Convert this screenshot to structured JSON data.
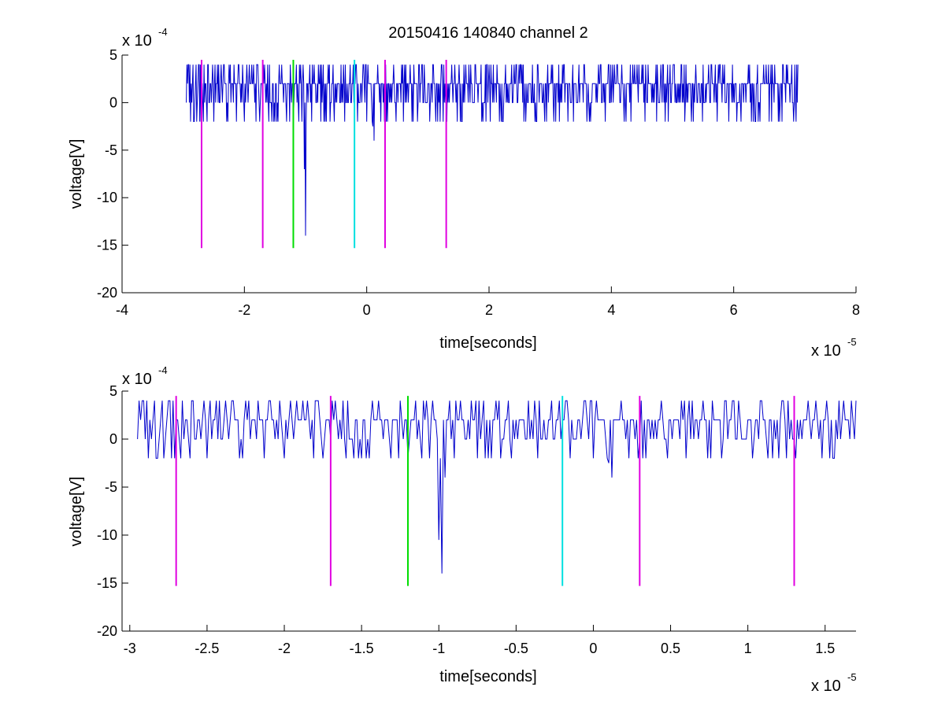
{
  "title": "20150416 140840 channel 2",
  "colors": {
    "signal": "#0000cc",
    "magenta": "#e000e0",
    "green": "#00dd00",
    "cyan": "#00e0e0",
    "axis": "#000000"
  },
  "chart_data": [
    {
      "type": "line",
      "title": "20150416 140840 channel 2",
      "xlabel": "time[seconds]",
      "ylabel": "voltage[V]",
      "x_scale_label": "x 10",
      "x_scale_power": "-5",
      "y_scale_label": "x 10",
      "y_scale_power": "-4",
      "xlim": [
        -4,
        8
      ],
      "ylim": [
        -20,
        5
      ],
      "x_ticks": [
        -4,
        -2,
        0,
        2,
        4,
        6,
        8
      ],
      "x_tick_labels": [
        "-4",
        "-2",
        "0",
        "2",
        "4",
        "6",
        "8"
      ],
      "y_ticks": [
        -20,
        -15,
        -10,
        -5,
        0,
        5
      ],
      "y_tick_labels": [
        "-20",
        "-15",
        "-10",
        "-5",
        "0",
        "5"
      ],
      "grid": false,
      "signal": {
        "x_start": -2.95,
        "x_end": 7.05,
        "levels": [
          -2,
          0,
          2,
          4
        ],
        "spikes": [
          {
            "x": -1.0,
            "y": -14
          },
          {
            "x": -1.02,
            "y": -7
          },
          {
            "x": 0.12,
            "y": -4
          },
          {
            "x": 0.1,
            "y": -2.5
          }
        ]
      },
      "markers": [
        {
          "x": -2.7,
          "y_top": 4.5,
          "y_bottom": -15.3,
          "color": "magenta"
        },
        {
          "x": -1.7,
          "y_top": 4.5,
          "y_bottom": -15.3,
          "color": "magenta"
        },
        {
          "x": -1.2,
          "y_top": 4.5,
          "y_bottom": -15.3,
          "color": "green"
        },
        {
          "x": -0.2,
          "y_top": 4.5,
          "y_bottom": -15.3,
          "color": "cyan"
        },
        {
          "x": 0.3,
          "y_top": 4.5,
          "y_bottom": -15.3,
          "color": "magenta"
        },
        {
          "x": 1.3,
          "y_top": 4.5,
          "y_bottom": -15.3,
          "color": "magenta"
        }
      ]
    },
    {
      "type": "line",
      "xlabel": "time[seconds]",
      "ylabel": "voltage[V]",
      "x_scale_label": "x 10",
      "x_scale_power": "-5",
      "y_scale_label": "x 10",
      "y_scale_power": "-4",
      "xlim": [
        -3.05,
        1.7
      ],
      "ylim": [
        -20,
        5
      ],
      "x_ticks": [
        -3,
        -2.5,
        -2,
        -1.5,
        -1,
        -0.5,
        0,
        0.5,
        1,
        1.5
      ],
      "x_tick_labels": [
        "-3",
        "-2.5",
        "-2",
        "-1.5",
        "-1",
        "-0.5",
        "0",
        "0.5",
        "1",
        "1.5"
      ],
      "y_ticks": [
        -20,
        -15,
        -10,
        -5,
        0,
        5
      ],
      "y_tick_labels": [
        "-20",
        "-15",
        "-10",
        "-5",
        "0",
        "5"
      ],
      "grid": false,
      "signal": {
        "x_start": -2.95,
        "x_end": 1.7,
        "levels": [
          -2,
          0,
          2,
          4
        ],
        "spikes": [
          {
            "x": -0.98,
            "y": -14
          },
          {
            "x": -1.0,
            "y": -10.5
          },
          {
            "x": -0.96,
            "y": -4
          },
          {
            "x": 0.12,
            "y": -4
          },
          {
            "x": 0.1,
            "y": -2.5
          }
        ]
      },
      "markers": [
        {
          "x": -2.7,
          "y_top": 4.5,
          "y_bottom": -15.3,
          "color": "magenta"
        },
        {
          "x": -1.7,
          "y_top": 4.5,
          "y_bottom": -15.3,
          "color": "magenta"
        },
        {
          "x": -1.2,
          "y_top": 4.5,
          "y_bottom": -15.3,
          "color": "green"
        },
        {
          "x": -0.2,
          "y_top": 4.5,
          "y_bottom": -15.3,
          "color": "cyan"
        },
        {
          "x": 0.3,
          "y_top": 4.5,
          "y_bottom": -15.3,
          "color": "magenta"
        },
        {
          "x": 1.3,
          "y_top": 4.5,
          "y_bottom": -15.3,
          "color": "magenta"
        }
      ]
    }
  ]
}
